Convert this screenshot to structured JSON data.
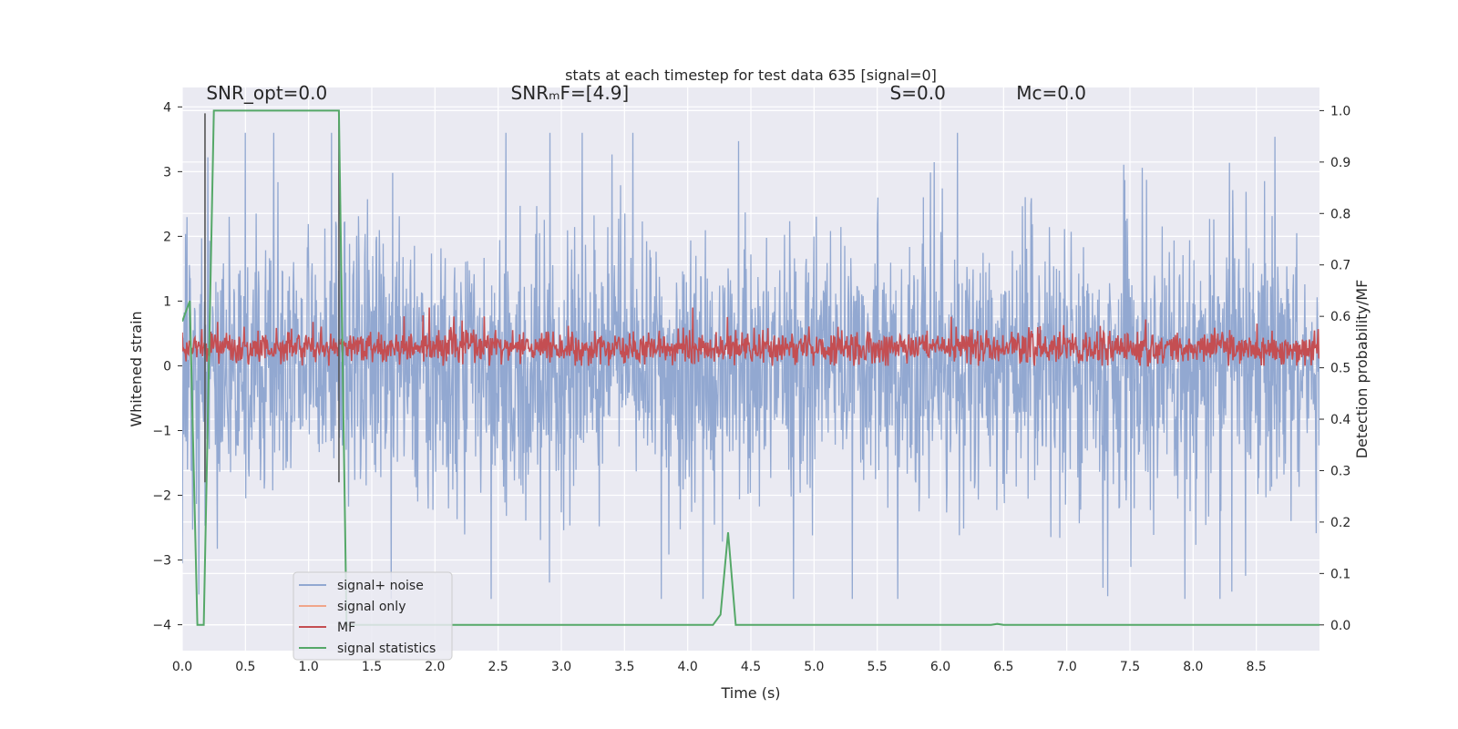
{
  "chart_data": {
    "type": "line",
    "title": "stats at each timestep for test data 635 [signal=0]",
    "xlabel": "Time (s)",
    "ylabel": "Whitened strain",
    "y2label": "Detection probability/MF",
    "xlim": [
      0.0,
      9.0
    ],
    "ylim": [
      -4.4,
      4.3
    ],
    "y2lim": [
      -0.05,
      1.045
    ],
    "xticks": [
      "0.0",
      "0.5",
      "1.0",
      "1.5",
      "2.0",
      "2.5",
      "3.0",
      "3.5",
      "4.0",
      "4.5",
      "5.0",
      "5.5",
      "6.0",
      "6.5",
      "7.0",
      "7.5",
      "8.0",
      "8.5"
    ],
    "yticks": [
      4,
      3,
      2,
      1,
      0,
      -1,
      -2,
      -3,
      -4
    ],
    "ytick_labels": [
      "4",
      "3",
      "2",
      "1",
      "0",
      "−1",
      "−2",
      "−3",
      "−4"
    ],
    "y2ticks": [
      "1.0",
      "0.9",
      "0.8",
      "0.7",
      "0.6",
      "0.5",
      "0.4",
      "0.3",
      "0.2",
      "0.1",
      "0.0"
    ],
    "grid": true,
    "legend_position": "lower-left",
    "annotations": [
      {
        "text": "SNR_opt=0.0",
        "x": 0.19,
        "y": 4.12
      },
      {
        "text": "SNRₘF=[4.9]",
        "x": 2.6,
        "y": 4.12
      },
      {
        "text": "S=0.0",
        "x": 5.6,
        "y": 4.12
      },
      {
        "text": "Mᴄ=0.0",
        "x": 6.6,
        "y": 4.12
      }
    ],
    "series": [
      {
        "name": "signal+ noise",
        "color": "#92a8d1",
        "axis": "left",
        "description": "dense whitened strain noise, amplitude approx ±1.6 typical, peaks up to ±3.6",
        "envelope_typical": 1.6,
        "envelope_peak": 3.6
      },
      {
        "name": "signal only",
        "color": "#f0a58a",
        "axis": "left",
        "values": []
      },
      {
        "name": "MF",
        "color": "#c44e52",
        "axis": "left",
        "range": [
          0.0,
          0.9
        ],
        "typical_mean": 0.28
      },
      {
        "name": "signal statistics",
        "color": "#55a868",
        "axis": "right",
        "x": [
          0.0,
          0.06,
          0.12,
          0.17,
          0.25,
          1.24,
          1.3,
          1.36,
          4.2,
          4.26,
          4.32,
          4.38,
          6.4,
          6.45,
          6.5,
          9.0
        ],
        "values": [
          0.59,
          0.63,
          0.0,
          0.0,
          1.0,
          1.0,
          0.0,
          0.0,
          0.0,
          0.02,
          0.18,
          0.0,
          0.0,
          0.002,
          0.0,
          0.0
        ]
      }
    ],
    "vlines": [
      {
        "x": 0.18,
        "color": "#555555"
      },
      {
        "x": 1.24,
        "color": "#555555"
      }
    ]
  }
}
